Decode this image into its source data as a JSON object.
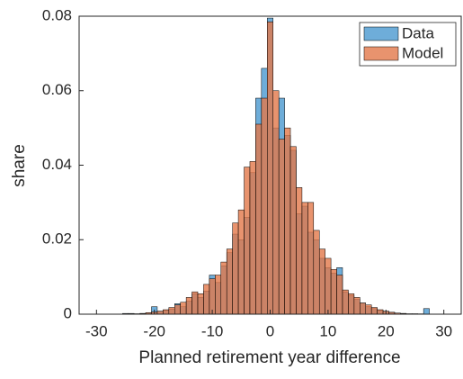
{
  "chart_data": {
    "type": "histogram",
    "xlabel": "Planned retirement year difference",
    "ylabel": "share",
    "bins": [
      -25.5,
      -24.5,
      -23.5,
      -22.5,
      -21.5,
      -20.5,
      -19.5,
      -18.5,
      -17.5,
      -16.5,
      -15.5,
      -14.5,
      -13.5,
      -12.5,
      -11.5,
      -10.5,
      -9.5,
      -8.5,
      -7.5,
      -6.5,
      -5.5,
      -4.5,
      -3.5,
      -2.5,
      -1.5,
      -0.5,
      0.5,
      1.5,
      2.5,
      3.5,
      4.5,
      5.5,
      6.5,
      7.5,
      8.5,
      9.5,
      10.5,
      11.5,
      12.5,
      13.5,
      14.5,
      15.5,
      16.5,
      17.5,
      18.5,
      19.5,
      20.5,
      21.5,
      22.5,
      23.5,
      24.5,
      25.5,
      26.5,
      27.5
    ],
    "series": [
      {
        "name": "Data",
        "color": "#4a98cf",
        "values": [
          0.0002,
          0.0002,
          0.0001,
          0.0002,
          0.0003,
          0.002,
          0.0008,
          0.001,
          0.0014,
          0.0028,
          0.002,
          0.0035,
          0.0055,
          0.0045,
          0.0062,
          0.0105,
          0.0085,
          0.013,
          0.0165,
          0.0215,
          0.02,
          0.026,
          0.038,
          0.058,
          0.066,
          0.0795,
          0.05,
          0.058,
          0.048,
          0.044,
          0.027,
          0.029,
          0.022,
          0.02,
          0.015,
          0.0125,
          0.011,
          0.0125,
          0.006,
          0.005,
          0.004,
          0.003,
          0.002,
          0.0015,
          0.001,
          0.0008,
          0.0005,
          0.0003,
          0.0002,
          0.0001,
          0.0001,
          0.0001,
          0.0015
        ]
      },
      {
        "name": "Model",
        "color": "#e2784a",
        "values": [
          0,
          0.0001,
          0.0001,
          0.0002,
          0.0004,
          0.0006,
          0.0008,
          0.0012,
          0.0018,
          0.0025,
          0.0032,
          0.0045,
          0.006,
          0.0055,
          0.008,
          0.0095,
          0.0105,
          0.014,
          0.0175,
          0.0245,
          0.028,
          0.0395,
          0.041,
          0.051,
          0.058,
          0.0785,
          0.06,
          0.047,
          0.05,
          0.045,
          0.034,
          0.03,
          0.03,
          0.0225,
          0.0175,
          0.015,
          0.012,
          0.0105,
          0.0065,
          0.0055,
          0.0045,
          0.003,
          0.0025,
          0.0018,
          0.0012,
          0.0008,
          0.0005,
          0.0003,
          0.0002,
          0.0001,
          0.0001,
          0,
          0
        ]
      }
    ],
    "xlim": [
      -33,
      33
    ],
    "xticks": [
      -30,
      -20,
      -10,
      0,
      10,
      20,
      30
    ],
    "ylim": [
      0,
      0.08
    ],
    "yticks": [
      0,
      0.02,
      0.04,
      0.06,
      0.08
    ],
    "legend": "northeast"
  }
}
